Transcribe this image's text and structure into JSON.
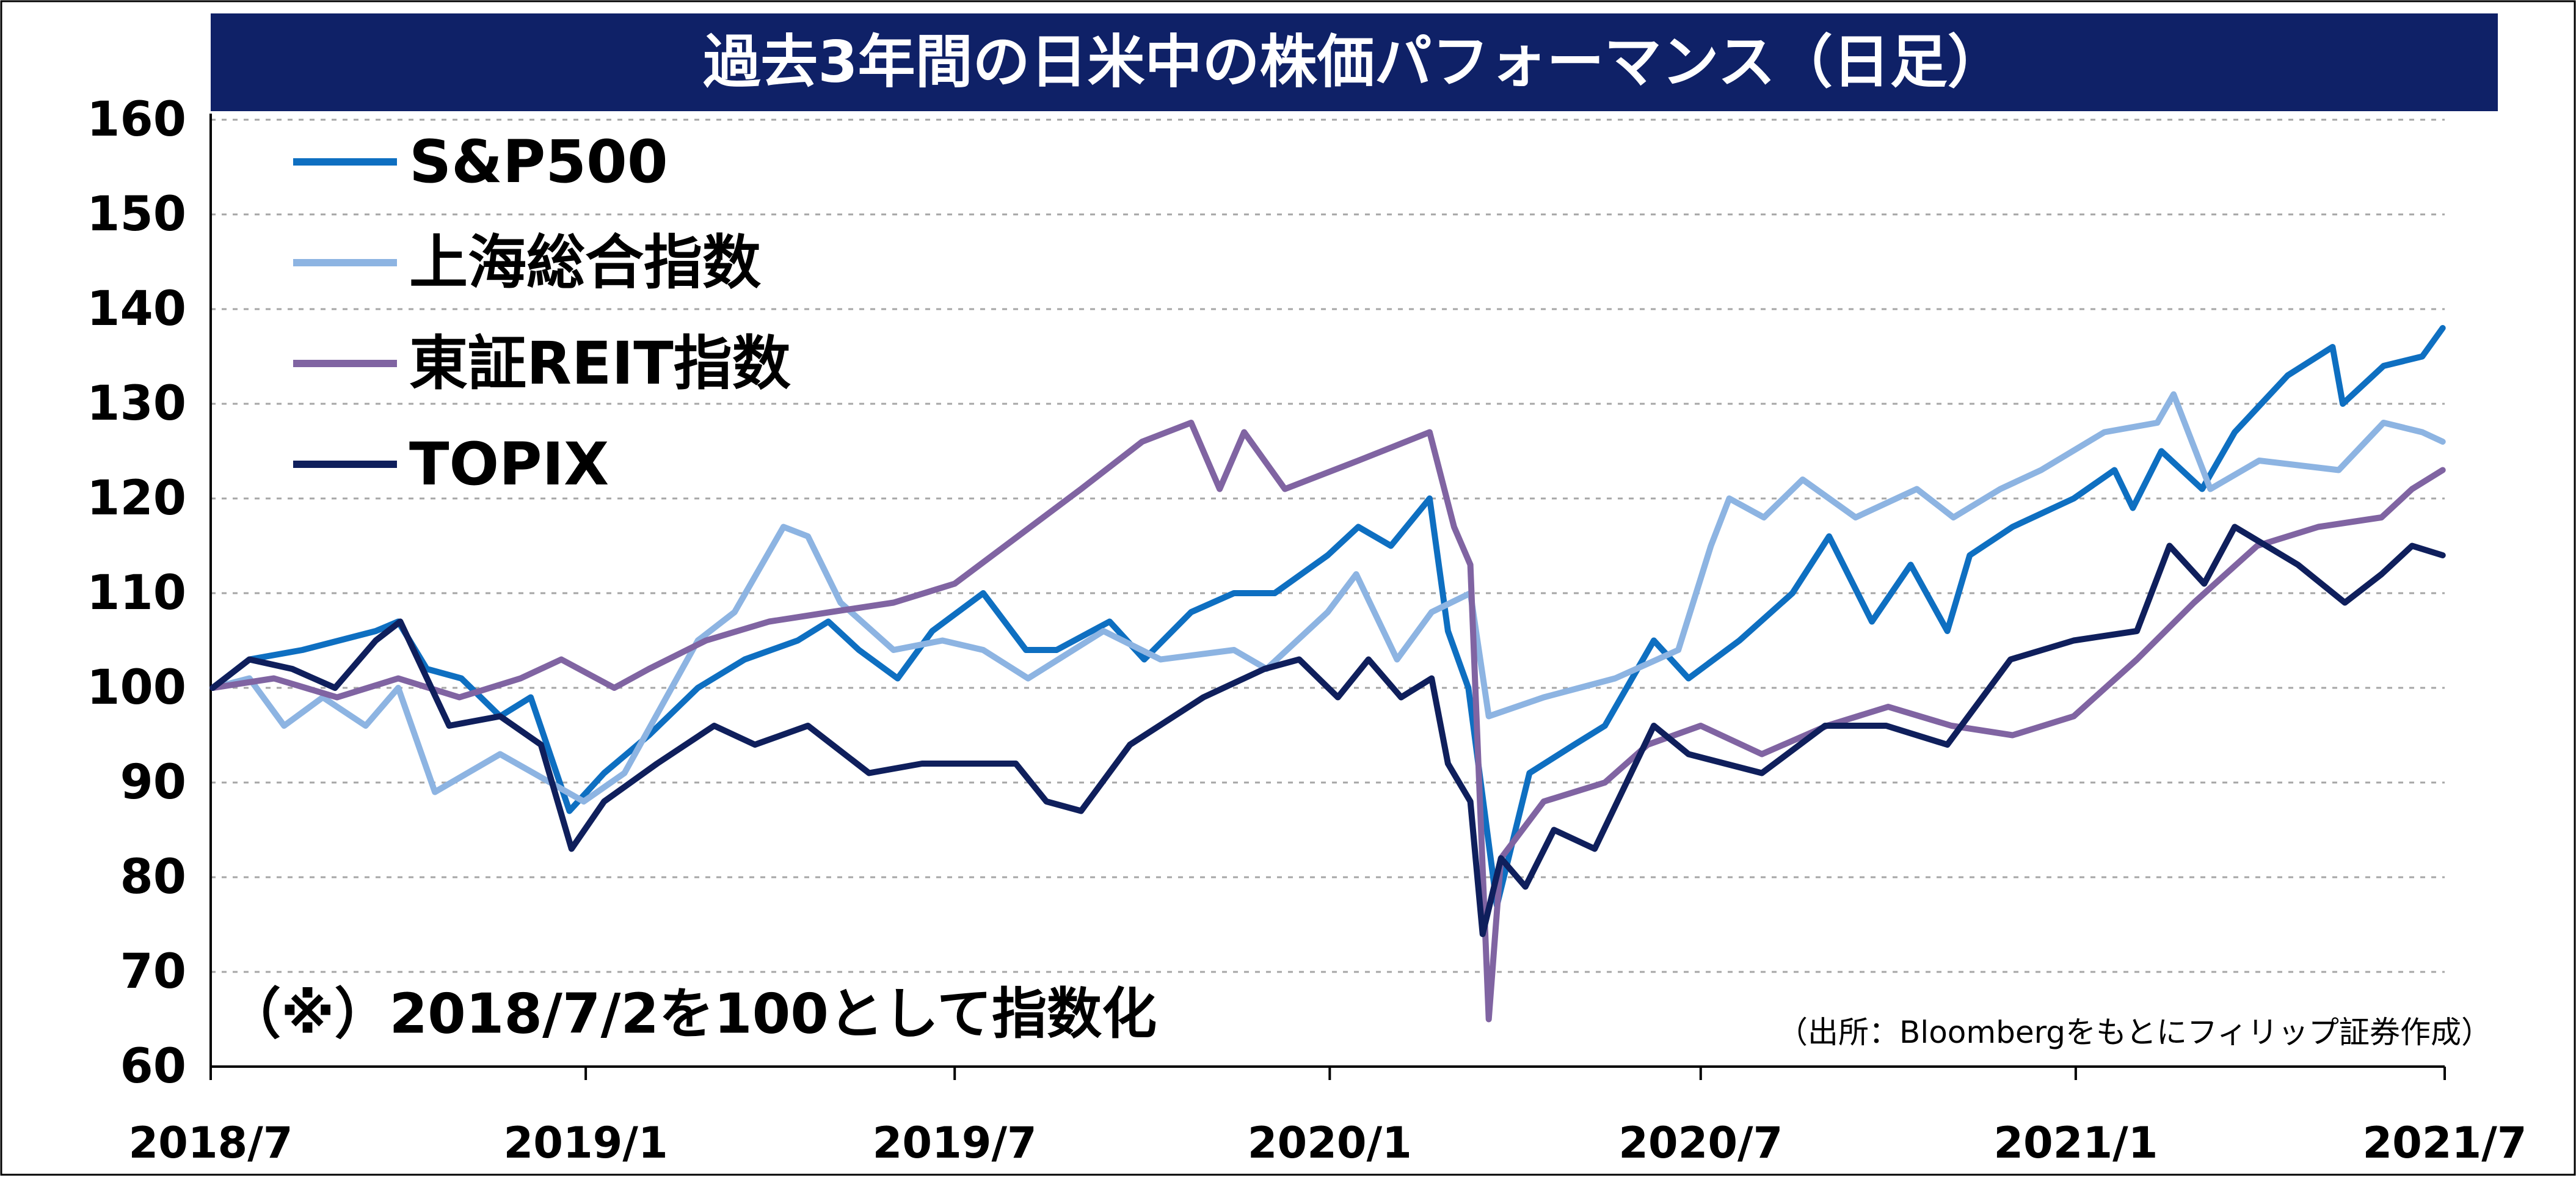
{
  "chart_data": {
    "type": "line",
    "title": "過去3年間の日米中の株価パフォーマンス（日足）",
    "note": "（※）2018/7/2を100として指数化",
    "source": "（出所：Bloombergをもとにフィリップ証券作成）",
    "ylim": [
      60,
      160
    ],
    "yticks": [
      "160",
      "150",
      "140",
      "130",
      "120",
      "110",
      "100",
      "90",
      "80",
      "70",
      "60"
    ],
    "xlim": [
      "2018-07-01",
      "2021-07-01"
    ],
    "xticks": [
      {
        "date": "2018-07-01",
        "label": "2018/7"
      },
      {
        "date": "2019-01-01",
        "label": "2019/1"
      },
      {
        "date": "2019-07-01",
        "label": "2019/7"
      },
      {
        "date": "2020-01-01",
        "label": "2020/1"
      },
      {
        "date": "2020-07-01",
        "label": "2020/7"
      },
      {
        "date": "2021-01-01",
        "label": "2021/1"
      },
      {
        "date": "2021-07-01",
        "label": "2021/7"
      }
    ],
    "grid": true,
    "legend_position": "top-left",
    "series": [
      {
        "name": "S&P500",
        "color": "#0e6fc1",
        "points": [
          [
            "2018-07-02",
            100
          ],
          [
            "2018-07-20",
            103
          ],
          [
            "2018-08-15",
            104
          ],
          [
            "2018-09-20",
            106
          ],
          [
            "2018-10-01",
            107
          ],
          [
            "2018-10-15",
            102
          ],
          [
            "2018-11-01",
            101
          ],
          [
            "2018-11-20",
            97
          ],
          [
            "2018-12-05",
            99
          ],
          [
            "2018-12-24",
            87
          ],
          [
            "2019-01-10",
            91
          ],
          [
            "2019-02-01",
            95
          ],
          [
            "2019-02-25",
            100
          ],
          [
            "2019-03-20",
            103
          ],
          [
            "2019-04-15",
            105
          ],
          [
            "2019-04-30",
            107
          ],
          [
            "2019-05-15",
            104
          ],
          [
            "2019-06-03",
            101
          ],
          [
            "2019-06-20",
            106
          ],
          [
            "2019-07-15",
            110
          ],
          [
            "2019-08-05",
            104
          ],
          [
            "2019-08-20",
            104
          ],
          [
            "2019-09-15",
            107
          ],
          [
            "2019-10-02",
            103
          ],
          [
            "2019-10-25",
            108
          ],
          [
            "2019-11-15",
            110
          ],
          [
            "2019-12-05",
            110
          ],
          [
            "2019-12-31",
            114
          ],
          [
            "2020-01-15",
            117
          ],
          [
            "2020-01-31",
            115
          ],
          [
            "2020-02-19",
            120
          ],
          [
            "2020-02-28",
            106
          ],
          [
            "2020-03-09",
            100
          ],
          [
            "2020-03-23",
            77
          ],
          [
            "2020-04-08",
            91
          ],
          [
            "2020-04-30",
            94
          ],
          [
            "2020-05-15",
            96
          ],
          [
            "2020-06-08",
            105
          ],
          [
            "2020-06-25",
            101
          ],
          [
            "2020-07-20",
            105
          ],
          [
            "2020-08-15",
            110
          ],
          [
            "2020-09-02",
            116
          ],
          [
            "2020-09-23",
            107
          ],
          [
            "2020-10-12",
            113
          ],
          [
            "2020-10-30",
            106
          ],
          [
            "2020-11-10",
            114
          ],
          [
            "2020-12-01",
            117
          ],
          [
            "2020-12-31",
            120
          ],
          [
            "2021-01-20",
            123
          ],
          [
            "2021-01-29",
            119
          ],
          [
            "2021-02-12",
            125
          ],
          [
            "2021-03-04",
            121
          ],
          [
            "2021-03-20",
            127
          ],
          [
            "2021-04-15",
            133
          ],
          [
            "2021-05-07",
            136
          ],
          [
            "2021-05-12",
            130
          ],
          [
            "2021-06-01",
            134
          ],
          [
            "2021-06-20",
            135
          ],
          [
            "2021-06-30",
            138
          ]
        ]
      },
      {
        "name": "上海総合指数",
        "color": "#8db4e2",
        "points": [
          [
            "2018-07-02",
            100
          ],
          [
            "2018-07-20",
            101
          ],
          [
            "2018-08-06",
            96
          ],
          [
            "2018-08-25",
            99
          ],
          [
            "2018-09-15",
            96
          ],
          [
            "2018-10-01",
            100
          ],
          [
            "2018-10-19",
            89
          ],
          [
            "2018-11-20",
            93
          ],
          [
            "2018-12-31",
            88
          ],
          [
            "2019-01-20",
            91
          ],
          [
            "2019-02-25",
            105
          ],
          [
            "2019-03-15",
            108
          ],
          [
            "2019-04-08",
            117
          ],
          [
            "2019-04-20",
            116
          ],
          [
            "2019-05-06",
            109
          ],
          [
            "2019-06-01",
            104
          ],
          [
            "2019-06-25",
            105
          ],
          [
            "2019-07-15",
            104
          ],
          [
            "2019-08-06",
            101
          ],
          [
            "2019-09-12",
            106
          ],
          [
            "2019-10-10",
            103
          ],
          [
            "2019-11-15",
            104
          ],
          [
            "2019-12-01",
            102
          ],
          [
            "2019-12-31",
            108
          ],
          [
            "2020-01-14",
            112
          ],
          [
            "2020-02-03",
            103
          ],
          [
            "2020-02-20",
            108
          ],
          [
            "2020-03-10",
            110
          ],
          [
            "2020-03-19",
            97
          ],
          [
            "2020-04-15",
            99
          ],
          [
            "2020-05-20",
            101
          ],
          [
            "2020-06-20",
            104
          ],
          [
            "2020-07-06",
            115
          ],
          [
            "2020-07-15",
            120
          ],
          [
            "2020-08-01",
            118
          ],
          [
            "2020-08-20",
            122
          ],
          [
            "2020-09-15",
            118
          ],
          [
            "2020-10-15",
            121
          ],
          [
            "2020-11-02",
            118
          ],
          [
            "2020-11-25",
            121
          ],
          [
            "2020-12-15",
            123
          ],
          [
            "2021-01-15",
            127
          ],
          [
            "2021-02-10",
            128
          ],
          [
            "2021-02-18",
            131
          ],
          [
            "2021-03-08",
            121
          ],
          [
            "2021-04-01",
            124
          ],
          [
            "2021-05-10",
            123
          ],
          [
            "2021-06-01",
            128
          ],
          [
            "2021-06-20",
            127
          ],
          [
            "2021-06-30",
            126
          ]
        ]
      },
      {
        "name": "東証REIT指数",
        "color": "#8064a2",
        "points": [
          [
            "2018-07-02",
            100
          ],
          [
            "2018-08-01",
            101
          ],
          [
            "2018-09-01",
            99
          ],
          [
            "2018-10-01",
            101
          ],
          [
            "2018-10-31",
            99
          ],
          [
            "2018-11-30",
            101
          ],
          [
            "2018-12-20",
            103
          ],
          [
            "2019-01-15",
            100
          ],
          [
            "2019-02-01",
            102
          ],
          [
            "2019-03-01",
            105
          ],
          [
            "2019-04-01",
            107
          ],
          [
            "2019-05-01",
            108
          ],
          [
            "2019-06-01",
            109
          ],
          [
            "2019-07-01",
            111
          ],
          [
            "2019-08-01",
            116
          ],
          [
            "2019-09-01",
            121
          ],
          [
            "2019-10-01",
            126
          ],
          [
            "2019-10-25",
            128
          ],
          [
            "2019-11-08",
            121
          ],
          [
            "2019-11-20",
            127
          ],
          [
            "2019-12-10",
            121
          ],
          [
            "2020-01-15",
            124
          ],
          [
            "2020-02-19",
            127
          ],
          [
            "2020-03-02",
            117
          ],
          [
            "2020-03-10",
            113
          ],
          [
            "2020-03-19",
            65
          ],
          [
            "2020-03-25",
            82
          ],
          [
            "2020-04-15",
            88
          ],
          [
            "2020-05-15",
            90
          ],
          [
            "2020-06-05",
            94
          ],
          [
            "2020-07-01",
            96
          ],
          [
            "2020-07-31",
            93
          ],
          [
            "2020-09-01",
            96
          ],
          [
            "2020-10-01",
            98
          ],
          [
            "2020-11-01",
            96
          ],
          [
            "2020-12-01",
            95
          ],
          [
            "2020-12-31",
            97
          ],
          [
            "2021-01-31",
            103
          ],
          [
            "2021-02-28",
            109
          ],
          [
            "2021-03-31",
            115
          ],
          [
            "2021-04-30",
            117
          ],
          [
            "2021-05-31",
            118
          ],
          [
            "2021-06-15",
            121
          ],
          [
            "2021-06-30",
            123
          ]
        ]
      },
      {
        "name": "TOPIX",
        "color": "#0f1f5c",
        "points": [
          [
            "2018-07-02",
            100
          ],
          [
            "2018-07-20",
            103
          ],
          [
            "2018-08-10",
            102
          ],
          [
            "2018-08-31",
            100
          ],
          [
            "2018-09-20",
            105
          ],
          [
            "2018-10-02",
            107
          ],
          [
            "2018-10-26",
            96
          ],
          [
            "2018-11-20",
            97
          ],
          [
            "2018-12-10",
            94
          ],
          [
            "2018-12-25",
            83
          ],
          [
            "2019-01-10",
            88
          ],
          [
            "2019-02-05",
            92
          ],
          [
            "2019-03-05",
            96
          ],
          [
            "2019-03-25",
            94
          ],
          [
            "2019-04-20",
            96
          ],
          [
            "2019-05-20",
            91
          ],
          [
            "2019-06-15",
            92
          ],
          [
            "2019-07-05",
            92
          ],
          [
            "2019-07-31",
            92
          ],
          [
            "2019-08-15",
            88
          ],
          [
            "2019-09-01",
            87
          ],
          [
            "2019-09-25",
            94
          ],
          [
            "2019-10-31",
            99
          ],
          [
            "2019-11-30",
            102
          ],
          [
            "2019-12-17",
            103
          ],
          [
            "2020-01-05",
            99
          ],
          [
            "2020-01-20",
            103
          ],
          [
            "2020-02-05",
            99
          ],
          [
            "2020-02-20",
            101
          ],
          [
            "2020-02-28",
            92
          ],
          [
            "2020-03-10",
            88
          ],
          [
            "2020-03-16",
            74
          ],
          [
            "2020-03-25",
            82
          ],
          [
            "2020-04-06",
            79
          ],
          [
            "2020-04-20",
            85
          ],
          [
            "2020-05-10",
            83
          ],
          [
            "2020-06-08",
            96
          ],
          [
            "2020-06-25",
            93
          ],
          [
            "2020-07-31",
            91
          ],
          [
            "2020-08-31",
            96
          ],
          [
            "2020-09-30",
            96
          ],
          [
            "2020-10-30",
            94
          ],
          [
            "2020-11-30",
            103
          ],
          [
            "2020-12-31",
            105
          ],
          [
            "2021-01-31",
            106
          ],
          [
            "2021-02-16",
            115
          ],
          [
            "2021-03-05",
            111
          ],
          [
            "2021-03-20",
            117
          ],
          [
            "2021-04-20",
            113
          ],
          [
            "2021-05-13",
            109
          ],
          [
            "2021-05-31",
            112
          ],
          [
            "2021-06-15",
            115
          ],
          [
            "2021-06-30",
            114
          ]
        ]
      }
    ]
  }
}
